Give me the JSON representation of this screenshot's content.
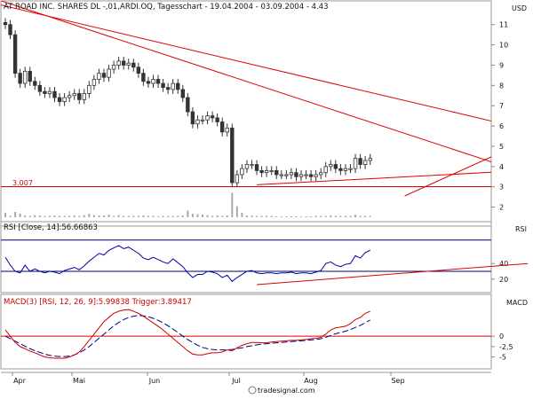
{
  "header": {
    "title": "AT ROAD INC. SHARES DL -,01,ARDI.OQ, Tagesschart - 19.04.2004 - 03.09.2004 - 4.43",
    "currency": "USD"
  },
  "price_panel": {
    "y_ticks": [
      2,
      3,
      4,
      5,
      6,
      7,
      8,
      9,
      10,
      11
    ],
    "support_label": "3.007"
  },
  "rsi_panel": {
    "title": "RSI [Close, 14]:56.66863",
    "axis_label": "RSI",
    "y_ticks": [
      20,
      40
    ]
  },
  "macd_panel": {
    "title": "MACD(3) [RSI, 12, 26, 9]:5.99838 Trigger:3.89417",
    "axis_label": "MACD",
    "y_ticks": [
      "0",
      "-2,5",
      "-5"
    ]
  },
  "x_axis": {
    "labels": [
      "Apr",
      "Mai",
      "Jun",
      "Jul",
      "Aug",
      "Sep"
    ]
  },
  "footer": {
    "brand": "tradesignal.com"
  },
  "colors": {
    "candle": "#333333",
    "trendline": "#dd0000",
    "rsi_line": "#0000aa",
    "macd_line": "#cc0000",
    "trigger_line": "#000080",
    "navy_level": "#000066"
  },
  "chart_data": [
    {
      "type": "candlestick",
      "name": "price",
      "ylim": [
        1.5,
        11.6
      ],
      "close": [
        11.0,
        10.5,
        8.6,
        8.1,
        8.7,
        8.2,
        8.0,
        7.7,
        7.6,
        7.7,
        7.4,
        7.2,
        7.4,
        7.5,
        7.6,
        7.3,
        7.6,
        8.0,
        8.3,
        8.6,
        8.4,
        8.8,
        9.0,
        9.2,
        9.0,
        9.1,
        8.9,
        8.6,
        8.2,
        8.1,
        8.3,
        8.1,
        7.9,
        7.8,
        8.1,
        7.8,
        7.4,
        6.7,
        6.1,
        6.3,
        6.3,
        6.5,
        6.4,
        6.2,
        5.7,
        5.9,
        3.2,
        3.6,
        3.9,
        4.1,
        4.1,
        3.8,
        3.7,
        3.8,
        3.8,
        3.6,
        3.6,
        3.6,
        3.7,
        3.5,
        3.6,
        3.6,
        3.5,
        3.6,
        3.7,
        4.0,
        4.1,
        3.9,
        3.8,
        3.9,
        3.9,
        4.4,
        4.1,
        4.3,
        4.4
      ],
      "volume": [
        1.0,
        0.3,
        1.2,
        0.8,
        0.4,
        0.3,
        0.5,
        0.4,
        0.3,
        0.3,
        0.4,
        0.3,
        0.3,
        0.3,
        0.4,
        0.3,
        0.5,
        0.8,
        0.5,
        0.4,
        0.4,
        0.6,
        0.3,
        0.5,
        0.3,
        0.3,
        0.3,
        0.3,
        0.4,
        0.3,
        0.3,
        0.2,
        0.3,
        0.3,
        0.3,
        0.3,
        0.4,
        1.5,
        0.8,
        0.7,
        0.6,
        0.5,
        0.3,
        0.4,
        0.3,
        0.4,
        5.5,
        2.5,
        1.0,
        0.4,
        0.4,
        0.3,
        0.3,
        0.3,
        0.3,
        0.2,
        0.2,
        0.2,
        0.2,
        0.2,
        0.2,
        0.2,
        0.2,
        0.3,
        0.3,
        0.3,
        0.4,
        0.3,
        0.3,
        0.3,
        0.3,
        0.6,
        0.3,
        0.3,
        0.3
      ],
      "support_level": 3.007,
      "trendlines": [
        {
          "from": [
            -5,
            12.5
          ],
          "to": [
            114,
            3.0
          ]
        },
        {
          "from": [
            -5,
            12.2
          ],
          "to": [
            115,
            5.3
          ]
        },
        {
          "from": [
            51,
            3.1
          ],
          "to": [
            128,
            4.1
          ]
        },
        {
          "from": [
            81,
            2.55
          ],
          "to": [
            107,
            5.4
          ]
        }
      ]
    },
    {
      "type": "line",
      "name": "rsi",
      "ylim": [
        5,
        80
      ],
      "levels": [
        30,
        70
      ],
      "values": [
        48,
        38,
        30,
        28,
        38,
        30,
        33,
        30,
        28,
        30,
        29,
        27,
        31,
        33,
        35,
        32,
        37,
        43,
        48,
        53,
        51,
        57,
        60,
        63,
        59,
        61,
        57,
        53,
        47,
        45,
        48,
        45,
        42,
        40,
        46,
        41,
        36,
        28,
        22,
        26,
        26,
        30,
        29,
        27,
        22,
        25,
        17,
        22,
        26,
        30,
        31,
        28,
        27,
        28,
        28,
        27,
        28,
        28,
        29,
        27,
        28,
        28,
        27,
        29,
        31,
        40,
        42,
        38,
        36,
        39,
        40,
        50,
        47,
        54,
        57
      ],
      "trendlines": [
        {
          "from": [
            51,
            13
          ],
          "to": [
            106,
            40
          ]
        }
      ]
    },
    {
      "type": "line",
      "name": "macd",
      "ylim": [
        -7,
        7.5
      ],
      "level": 0,
      "macd": [
        1.5,
        0,
        -1.5,
        -2.5,
        -3,
        -3.6,
        -4,
        -4.5,
        -5,
        -5.2,
        -5.3,
        -5.3,
        -5.3,
        -5,
        -4.5,
        -3.8,
        -2.5,
        -1,
        0.5,
        2,
        3.5,
        4.5,
        5.5,
        6,
        6.3,
        6.4,
        6,
        5.5,
        4.8,
        4,
        3.2,
        2.4,
        1.5,
        0.5,
        -0.5,
        -1.5,
        -2.5,
        -3.5,
        -4.3,
        -4.5,
        -4.5,
        -4.2,
        -4,
        -4,
        -3.8,
        -3.3,
        -3.5,
        -2.8,
        -2.2,
        -1.8,
        -1.5,
        -1.5,
        -1.6,
        -1.6,
        -1.4,
        -1.3,
        -1.2,
        -1.1,
        -1,
        -1,
        -0.9,
        -0.8,
        -0.6,
        -0.5,
        -0.3,
        0.5,
        1.5,
        2,
        2.2,
        2.4,
        3,
        4,
        4.5,
        5.5,
        6
      ],
      "trigger": [
        0,
        -0.6,
        -1.2,
        -1.8,
        -2.4,
        -3,
        -3.5,
        -3.9,
        -4.3,
        -4.6,
        -4.8,
        -4.9,
        -4.9,
        -4.8,
        -4.5,
        -4,
        -3.3,
        -2.5,
        -1.5,
        -0.5,
        0.5,
        1.5,
        2.5,
        3.3,
        4,
        4.5,
        4.8,
        5,
        4.9,
        4.7,
        4.3,
        3.8,
        3.2,
        2.5,
        1.7,
        0.9,
        0,
        -0.8,
        -1.5,
        -2.2,
        -2.7,
        -3,
        -3.2,
        -3.3,
        -3.3,
        -3.3,
        -3.2,
        -3,
        -2.8,
        -2.5,
        -2.3,
        -2.1,
        -1.9,
        -1.8,
        -1.7,
        -1.6,
        -1.5,
        -1.4,
        -1.3,
        -1.2,
        -1.1,
        -1,
        -0.9,
        -0.8,
        -0.6,
        -0.3,
        0.2,
        0.6,
        0.9,
        1.2,
        1.6,
        2.1,
        2.6,
        3.2,
        3.9
      ]
    }
  ]
}
